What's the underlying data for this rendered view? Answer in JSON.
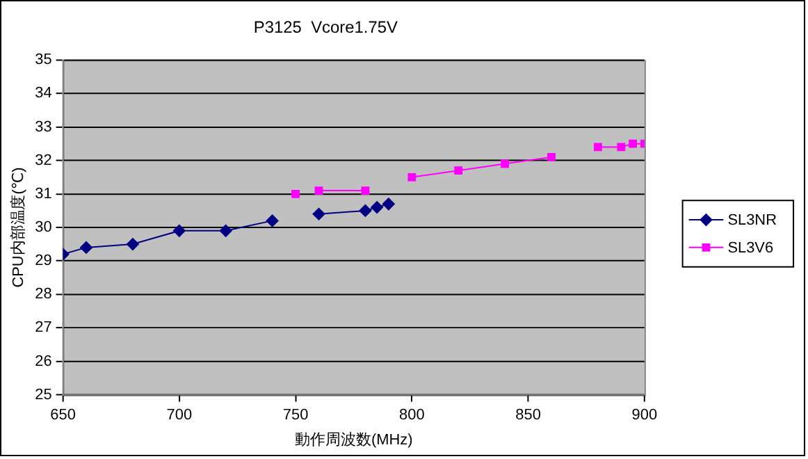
{
  "chart_data": {
    "type": "line",
    "title": "P3125  Vcore1.75V",
    "xlabel": "動作周波数(MHz)",
    "ylabel": "CPU内部温度(℃)",
    "xlim": [
      650,
      900
    ],
    "xticks": [
      650,
      700,
      750,
      800,
      850,
      900
    ],
    "ylim": [
      25,
      35
    ],
    "yticks": [
      25,
      26,
      27,
      28,
      29,
      30,
      31,
      32,
      33,
      34,
      35
    ],
    "grid": "y",
    "legend": "right",
    "line_style": "solid",
    "series": [
      {
        "name": "SL3NR",
        "color": "#000080",
        "marker": "diamond",
        "x": [
          650,
          660,
          680,
          700,
          720,
          740,
          750,
          760,
          780,
          785,
          790
        ],
        "values": [
          29.2,
          29.4,
          29.5,
          29.9,
          29.9,
          30.2,
          null,
          30.4,
          30.5,
          30.6,
          30.7
        ]
      },
      {
        "name": "SL3V6",
        "color": "#ff00ff",
        "marker": "square",
        "x": [
          750,
          755,
          760,
          780,
          790,
          800,
          820,
          840,
          860,
          870,
          880,
          890,
          895,
          900
        ],
        "values": [
          31.0,
          null,
          31.1,
          31.1,
          null,
          31.5,
          31.7,
          31.9,
          32.1,
          null,
          32.4,
          32.4,
          32.5,
          32.5
        ]
      }
    ]
  }
}
